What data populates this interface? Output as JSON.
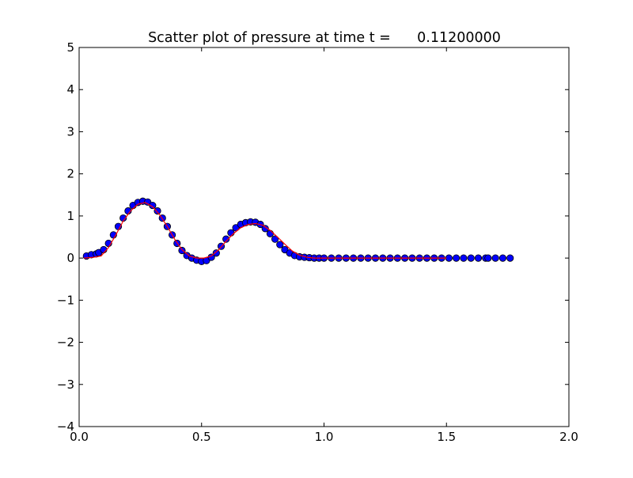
{
  "chart_data": {
    "type": "scatter",
    "title": "Scatter plot of pressure at time t =      0.11200000",
    "xlabel": "",
    "ylabel": "",
    "xlim": [
      0.0,
      2.0
    ],
    "ylim": [
      -4,
      5
    ],
    "xticks": [
      0.0,
      0.5,
      1.0,
      1.5,
      2.0
    ],
    "xtick_labels": [
      "0.0",
      "0.5",
      "1.0",
      "1.5",
      "2.0"
    ],
    "yticks": [
      -4,
      -3,
      -2,
      -1,
      0,
      1,
      2,
      3,
      4,
      5
    ],
    "ytick_labels": [
      "−4",
      "−3",
      "−2",
      "−1",
      "0",
      "1",
      "2",
      "3",
      "4",
      "5"
    ],
    "grid": false,
    "legend": "none",
    "colors": {
      "scatter_fill": "#0000ff",
      "scatter_edge": "#000000",
      "reference_line": "#ff0000",
      "axes": "#000000",
      "background": "#ffffff"
    },
    "series": [
      {
        "kind": "scatter",
        "x": [
          0.03,
          0.05,
          0.07,
          0.08,
          0.1,
          0.12,
          0.14,
          0.16,
          0.18,
          0.2,
          0.22,
          0.24,
          0.26,
          0.28,
          0.3,
          0.32,
          0.34,
          0.36,
          0.38,
          0.4,
          0.42,
          0.44,
          0.46,
          0.48,
          0.5,
          0.52,
          0.54,
          0.56,
          0.58,
          0.6,
          0.62,
          0.64,
          0.66,
          0.68,
          0.7,
          0.72,
          0.74,
          0.76,
          0.78,
          0.8,
          0.82,
          0.84,
          0.86,
          0.88,
          0.9,
          0.92,
          0.94,
          0.96,
          0.98,
          1.0,
          1.03,
          1.06,
          1.09,
          1.12,
          1.15,
          1.18,
          1.21,
          1.24,
          1.27,
          1.3,
          1.33,
          1.36,
          1.39,
          1.42,
          1.45,
          1.48,
          1.51,
          1.54,
          1.57,
          1.6,
          1.63,
          1.66,
          1.67,
          1.7,
          1.73,
          1.76
        ],
        "y": [
          0.05,
          0.08,
          0.1,
          0.13,
          0.2,
          0.35,
          0.55,
          0.75,
          0.95,
          1.12,
          1.25,
          1.32,
          1.35,
          1.33,
          1.25,
          1.12,
          0.95,
          0.75,
          0.55,
          0.35,
          0.18,
          0.06,
          0.0,
          -0.05,
          -0.08,
          -0.06,
          0.02,
          0.12,
          0.28,
          0.45,
          0.6,
          0.72,
          0.8,
          0.84,
          0.86,
          0.85,
          0.8,
          0.7,
          0.58,
          0.45,
          0.32,
          0.2,
          0.12,
          0.06,
          0.03,
          0.02,
          0.01,
          0.0,
          0.0,
          0.0,
          0.0,
          0.0,
          0.0,
          0.0,
          0.0,
          0.0,
          0.0,
          0.0,
          0.0,
          0.0,
          0.0,
          0.0,
          0.0,
          0.0,
          0.0,
          0.0,
          0.0,
          0.0,
          0.0,
          0.0,
          0.0,
          0.0,
          0.0,
          0.0,
          0.0,
          0.0
        ]
      },
      {
        "kind": "line",
        "x": [
          0.02,
          0.06,
          0.09,
          0.12,
          0.15,
          0.18,
          0.21,
          0.24,
          0.27,
          0.3,
          0.33,
          0.36,
          0.39,
          0.42,
          0.45,
          0.48,
          0.51,
          0.54,
          0.57,
          0.6,
          0.63,
          0.66,
          0.69,
          0.72,
          0.75,
          0.78,
          0.81,
          0.84,
          0.87,
          0.9,
          0.93,
          0.96,
          1.0,
          1.1,
          1.2,
          1.3,
          1.4,
          1.5
        ],
        "y": [
          0.0,
          0.02,
          0.05,
          0.25,
          0.55,
          0.88,
          1.12,
          1.28,
          1.32,
          1.22,
          1.02,
          0.75,
          0.45,
          0.2,
          0.05,
          0.0,
          0.0,
          0.05,
          0.2,
          0.4,
          0.58,
          0.72,
          0.8,
          0.82,
          0.78,
          0.66,
          0.5,
          0.33,
          0.17,
          0.07,
          0.02,
          0.0,
          0.0,
          0.0,
          0.0,
          0.0,
          0.0,
          0.0
        ]
      }
    ]
  }
}
